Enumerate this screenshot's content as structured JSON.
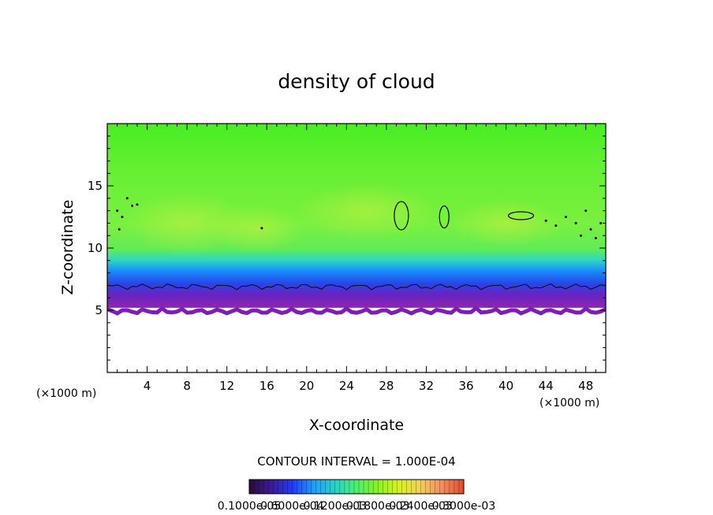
{
  "chart_data": {
    "type": "heatmap",
    "title": "density of cloud",
    "xlabel": "X-coordinate",
    "ylabel": "Z-coordinate",
    "x_unit": "(×1000 m)",
    "y_unit": "(×1000 m)",
    "xlim": [
      0,
      50
    ],
    "ylim": [
      0,
      20
    ],
    "x_ticks": [
      4,
      8,
      12,
      16,
      20,
      24,
      28,
      32,
      36,
      40,
      44,
      48
    ],
    "y_ticks": [
      5,
      10,
      15
    ],
    "contour_interval_text": "CONTOUR INTERVAL = 1.000E-04",
    "colorbar": {
      "labels": [
        "0.1000e-05",
        "0.6000e-04",
        "0.1200e-03",
        "0.1800e-03",
        "0.2400e-03",
        "0.3000e-03"
      ],
      "min": 1e-06,
      "max": 0.0003,
      "colors": [
        "#2b0a3d",
        "#3a1a9e",
        "#1e3cff",
        "#1aa0ff",
        "#22d6c8",
        "#4cf06a",
        "#8cf028",
        "#d8f028",
        "#f0d060",
        "#f09060",
        "#e05030"
      ]
    },
    "field": {
      "cloud_base_z": 5.2,
      "cloud_top_z": 20,
      "description_colors": {
        "base": "#7a1fb0",
        "lower_blue": "#1f5cff",
        "mid_cyan": "#20d0c8",
        "main": "#66ee44",
        "upper": "#44ee22"
      }
    }
  }
}
